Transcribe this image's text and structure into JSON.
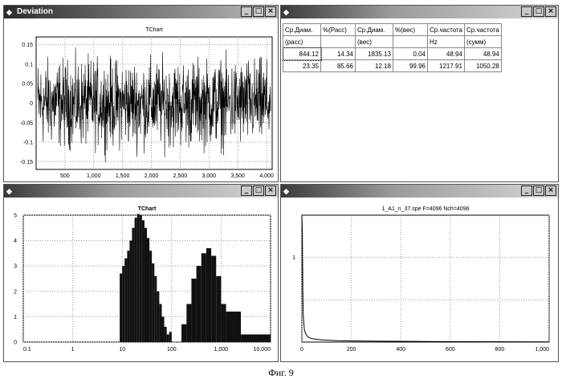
{
  "caption": "Фиг. 9",
  "windows": [
    {
      "title": "Deviation",
      "chart_title": "TChart"
    },
    {
      "title": ""
    },
    {
      "title": "",
      "chart_title": "TChart"
    },
    {
      "title": "",
      "chart_title": "1_A1_n_37.spe F=4096 Nch=4096"
    }
  ],
  "window_buttons": {
    "minimize": "_",
    "maximize": "□",
    "close": "×"
  },
  "table": {
    "headers": [
      "Ср.Диам.",
      "%(Расс)",
      "Ср.Диам.",
      "%(вес)",
      "Ср.частота",
      "Ср.частота"
    ],
    "subheaders": [
      "(расс)",
      "",
      "(вес)",
      "",
      "Hz",
      "(сумм)"
    ],
    "rows": [
      [
        "844.12",
        "14.34",
        "1835.13",
        "0.04",
        "48.94",
        "48.94"
      ],
      [
        "23.35",
        "85.66",
        "12.18",
        "99.96",
        "1217.91",
        "1050.28"
      ]
    ]
  },
  "chart_data": [
    {
      "type": "line",
      "title": "TChart",
      "x_range": [
        1,
        4096
      ],
      "ylim": [
        -0.17,
        0.17
      ],
      "xticks": [
        "500",
        "1,000",
        "1,500",
        "2,000",
        "2,500",
        "3,000",
        "3,500",
        "4,000"
      ],
      "xtick_values": [
        500,
        1000,
        1500,
        2000,
        2500,
        3000,
        3500,
        4000
      ],
      "yticks": [
        "0.15",
        "0.1",
        "0.05",
        "0",
        "-0.05",
        "-0.1",
        "-0.15"
      ],
      "ytick_values": [
        0.15,
        0.1,
        0.05,
        0,
        -0.05,
        -0.1,
        -0.15
      ],
      "series_description": "noise signal, amplitude about ±0.15",
      "grid": true
    },
    {
      "type": "bar",
      "title": "TChart",
      "x_scale": "log",
      "xlim": [
        0.1,
        10000
      ],
      "ylim": [
        0,
        5
      ],
      "xticks": [
        "0.1",
        "1",
        "10",
        "100",
        "1,000",
        "10,000"
      ],
      "xtick_values": [
        0.1,
        1,
        10,
        100,
        1000,
        10000
      ],
      "yticks": [
        "5",
        "4",
        "3",
        "2",
        "1",
        "0"
      ],
      "ytick_values": [
        5,
        4,
        3,
        2,
        1,
        0
      ],
      "grid": true,
      "bins": [
        {
          "x0": 8.9,
          "x1": 10,
          "y": 2.7
        },
        {
          "x0": 10,
          "x1": 11.2,
          "y": 3.0
        },
        {
          "x0": 11.2,
          "x1": 12.6,
          "y": 3.3
        },
        {
          "x0": 12.6,
          "x1": 14.1,
          "y": 3.6
        },
        {
          "x0": 14.1,
          "x1": 15.8,
          "y": 4.0
        },
        {
          "x0": 15.8,
          "x1": 17.8,
          "y": 4.5
        },
        {
          "x0": 17.8,
          "x1": 20,
          "y": 4.9
        },
        {
          "x0": 20,
          "x1": 22.4,
          "y": 5.05
        },
        {
          "x0": 22.4,
          "x1": 25.1,
          "y": 5.0
        },
        {
          "x0": 25.1,
          "x1": 28.2,
          "y": 4.8
        },
        {
          "x0": 28.2,
          "x1": 31.6,
          "y": 4.5
        },
        {
          "x0": 31.6,
          "x1": 35.5,
          "y": 4.1
        },
        {
          "x0": 35.5,
          "x1": 39.8,
          "y": 3.6
        },
        {
          "x0": 39.8,
          "x1": 44.7,
          "y": 3.1
        },
        {
          "x0": 44.7,
          "x1": 50.1,
          "y": 2.6
        },
        {
          "x0": 50.1,
          "x1": 56.2,
          "y": 2.0
        },
        {
          "x0": 56.2,
          "x1": 63.1,
          "y": 1.5
        },
        {
          "x0": 63.1,
          "x1": 70.8,
          "y": 1.0
        },
        {
          "x0": 70.8,
          "x1": 79.4,
          "y": 0.6
        },
        {
          "x0": 79.4,
          "x1": 89.1,
          "y": 0.3
        },
        {
          "x0": 89.1,
          "x1": 100,
          "y": 0.4
        },
        {
          "x0": 158,
          "x1": 200,
          "y": 0.7
        },
        {
          "x0": 200,
          "x1": 251,
          "y": 1.5
        },
        {
          "x0": 251,
          "x1": 316,
          "y": 2.5
        },
        {
          "x0": 316,
          "x1": 398,
          "y": 3.0
        },
        {
          "x0": 398,
          "x1": 501,
          "y": 3.5
        },
        {
          "x0": 501,
          "x1": 631,
          "y": 3.7
        },
        {
          "x0": 631,
          "x1": 794,
          "y": 3.4
        },
        {
          "x0": 794,
          "x1": 1000,
          "y": 2.6
        },
        {
          "x0": 1000,
          "x1": 1259,
          "y": 1.5
        },
        {
          "x0": 1259,
          "x1": 2512,
          "y": 1.2
        },
        {
          "x0": 2512,
          "x1": 10000,
          "y": 0.3
        }
      ]
    },
    {
      "type": "line",
      "title": "1_A1_n_37.spe F=4096 Nch=4096",
      "xlim": [
        0,
        1000
      ],
      "ylim": [
        0,
        1.5
      ],
      "xticks": [
        "0",
        "200",
        "400",
        "600",
        "800",
        "1,000"
      ],
      "xtick_values": [
        0,
        200,
        400,
        600,
        800,
        1000
      ],
      "yticks": [
        "1"
      ],
      "ytick_values": [
        1
      ],
      "grid": true,
      "points": [
        [
          0,
          1.5
        ],
        [
          2,
          1.3
        ],
        [
          4,
          0.6
        ],
        [
          6,
          0.3
        ],
        [
          10,
          0.15
        ],
        [
          15,
          0.1
        ],
        [
          25,
          0.06
        ],
        [
          40,
          0.04
        ],
        [
          80,
          0.025
        ],
        [
          150,
          0.015
        ],
        [
          300,
          0.01
        ],
        [
          600,
          0.005
        ],
        [
          1000,
          0.003
        ]
      ]
    }
  ]
}
